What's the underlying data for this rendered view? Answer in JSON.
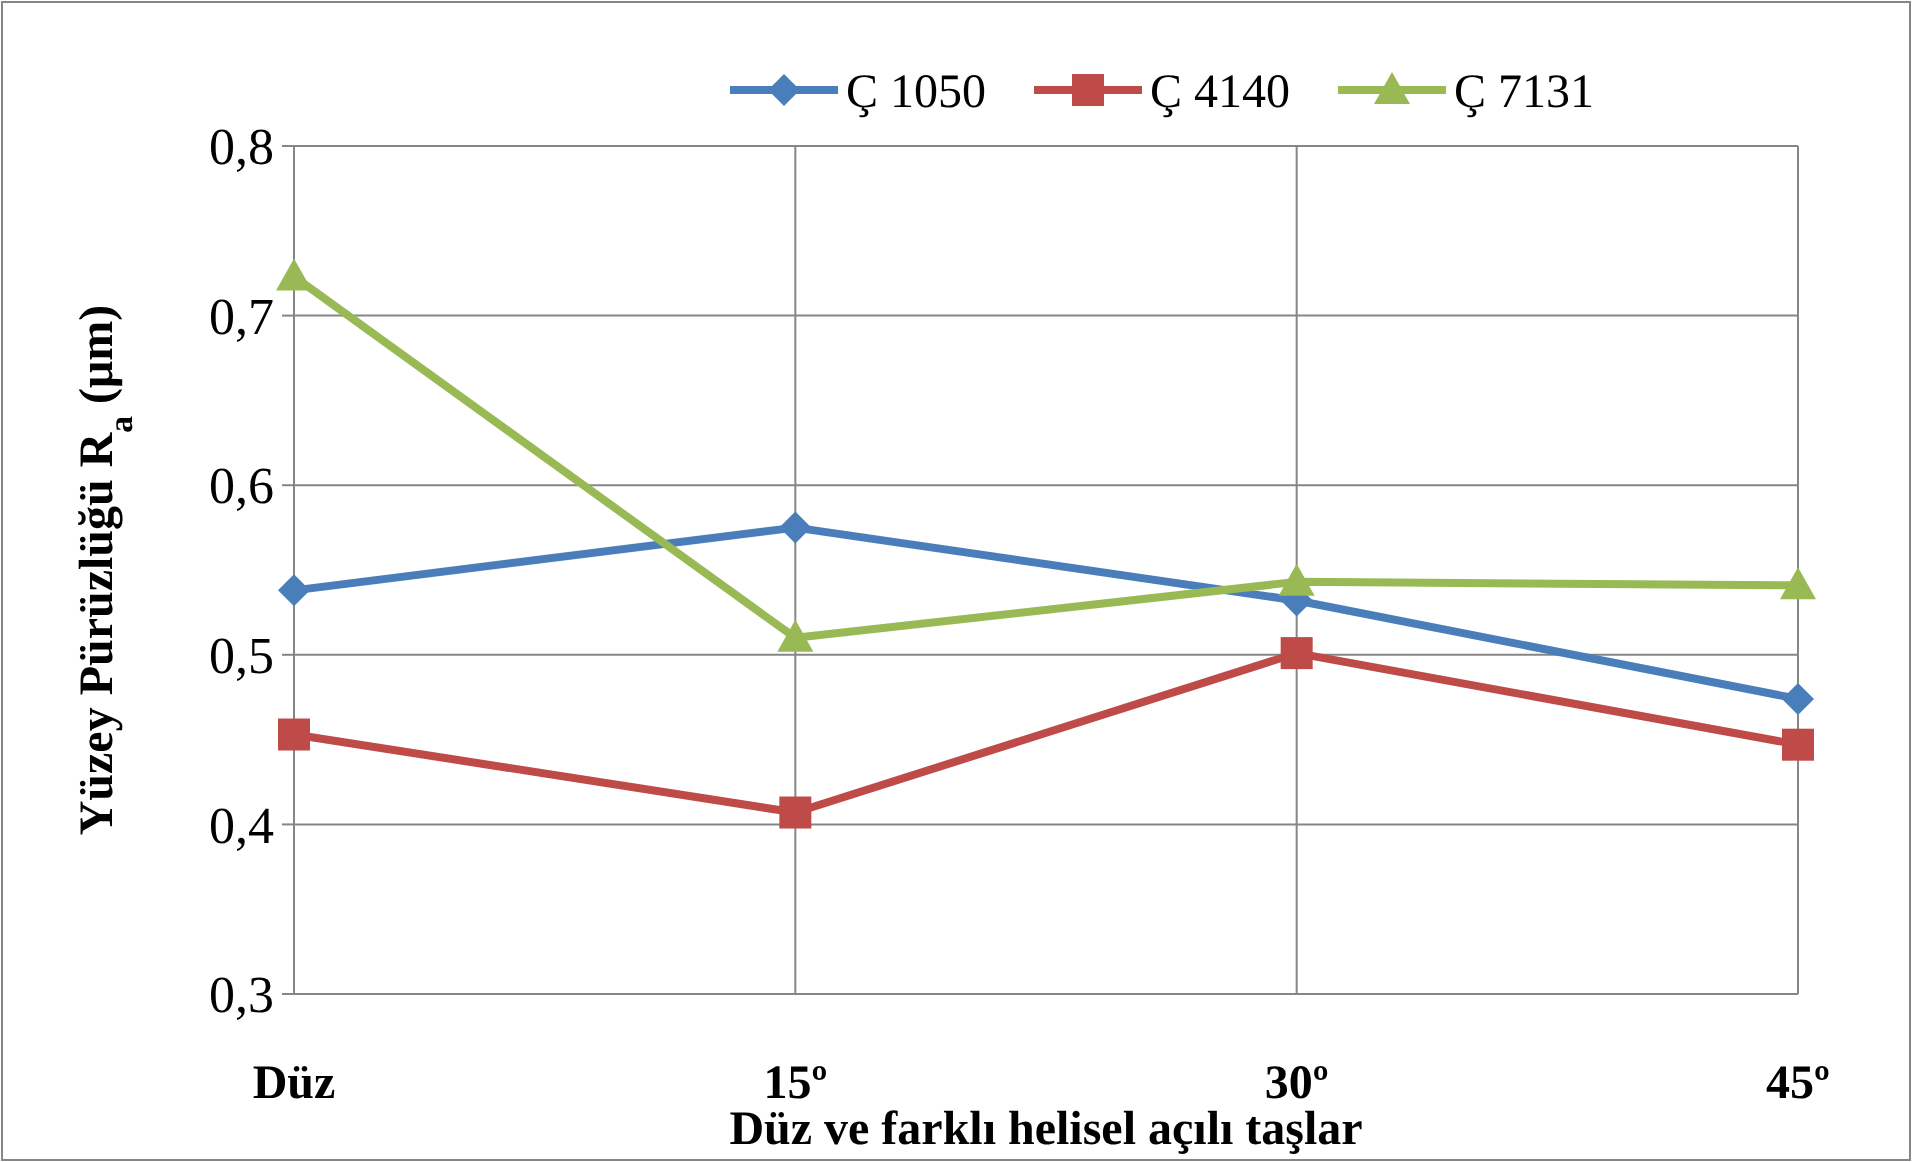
{
  "chart_data": {
    "type": "line",
    "xlabel": "Düz ve farklı helisel açılı taşlar",
    "ylabel": "Yüzey Pürüzlüğü R$_{a}$ (μm)",
    "categories": [
      "Düz",
      "15º",
      "30º",
      "45º"
    ],
    "series": [
      {
        "name": "Ç 1050",
        "color": "#4a7ebb",
        "marker": "diamond",
        "values": [
          0.538,
          0.575,
          0.532,
          0.474
        ]
      },
      {
        "name": "Ç 4140",
        "color": "#be4b48",
        "marker": "square",
        "values": [
          0.453,
          0.407,
          0.501,
          0.447
        ]
      },
      {
        "name": "Ç 7131",
        "color": "#98b954",
        "marker": "triangle",
        "values": [
          0.723,
          0.51,
          0.543,
          0.541
        ]
      }
    ],
    "ylim": [
      0.3,
      0.8
    ],
    "yticks": [
      {
        "value": 0.3,
        "label": "0,3"
      },
      {
        "value": 0.4,
        "label": "0,4"
      },
      {
        "value": 0.5,
        "label": "0,5"
      },
      {
        "value": 0.6,
        "label": "0,6"
      },
      {
        "value": 0.7,
        "label": "0,7"
      },
      {
        "value": 0.8,
        "label": "0,8"
      }
    ],
    "grid": true,
    "legend": "top",
    "line_style": "solid"
  }
}
